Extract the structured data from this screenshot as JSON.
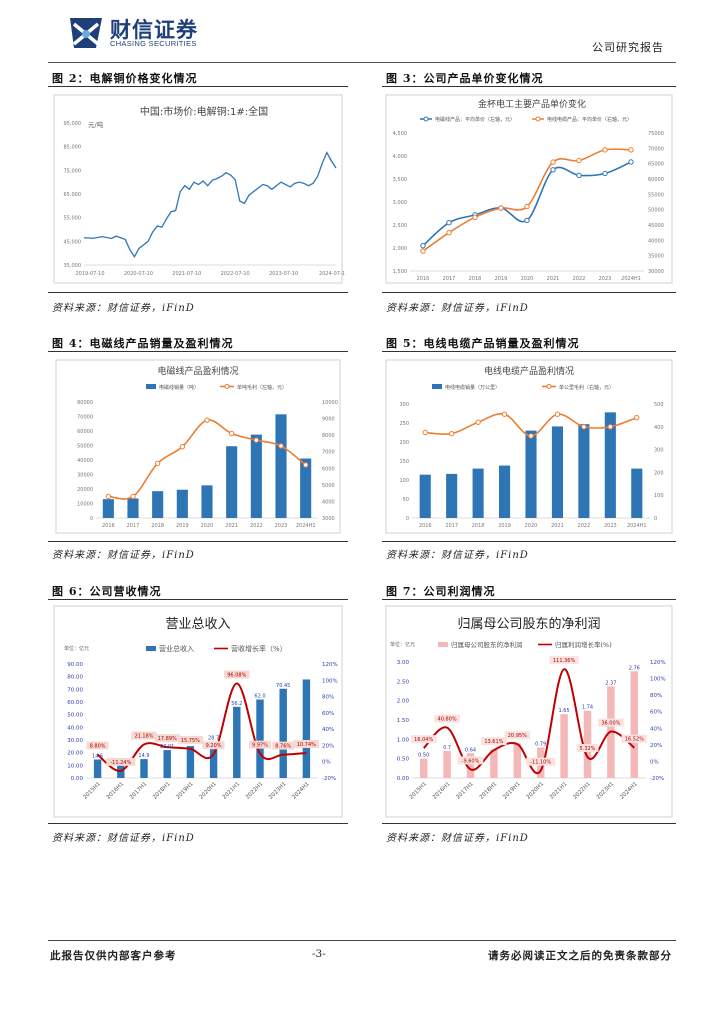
{
  "header": {
    "company_cn": "财信证券",
    "company_en": "CHASING SECURITIES",
    "doc_type": "公司研究报告"
  },
  "footer": {
    "left": "此报告仅供内部客户参考",
    "page": "-3-",
    "right": "请务必阅读正文之后的免责条款部分"
  },
  "colors": {
    "blue": "#2e75b6",
    "orange": "#ed7d31",
    "red": "#c00000",
    "pink": "#f4b8b8"
  },
  "figures": [
    {
      "label": "图 2：电解铜价格变化情况",
      "source": "资料来源：财信证券，iFinD"
    },
    {
      "label": "图 3：公司产品单价变化情况",
      "source": "资料来源：财信证券，iFinD"
    },
    {
      "label": "图 4：电磁线产品销量及盈利情况",
      "source": "资料来源：财信证券，iFinD"
    },
    {
      "label": "图 5：电线电缆产品销量及盈利情况",
      "source": "资料来源：财信证券，iFinD"
    },
    {
      "label": "图 6：公司营收情况",
      "source": "资料来源：财信证券，iFinD"
    },
    {
      "label": "图 7：公司利润情况",
      "source": "资料来源：财信证券，iFinD"
    }
  ],
  "chart_data": [
    {
      "type": "line",
      "title": "中国:市场价:电解铜:1#:全国",
      "unit": "元/吨",
      "x_ticks": [
        "2019-07-10",
        "2020-07-10",
        "2021-07-10",
        "2022-07-10",
        "2023-07-10",
        "2024-07-1"
      ],
      "y_ticks": [
        "35,000",
        "45,000",
        "55,000",
        "65,000",
        "75,000",
        "85,000",
        "95,000"
      ],
      "ylim": [
        35000,
        95000
      ],
      "series": [
        {
          "name": "电解铜",
          "points": [
            [
              0,
              46500
            ],
            [
              2,
              46300
            ],
            [
              4,
              47000
            ],
            [
              6,
              46200
            ],
            [
              7,
              47200
            ],
            [
              9,
              45800
            ],
            [
              10,
              41500
            ],
            [
              11,
              38500
            ],
            [
              12,
              42000
            ],
            [
              14,
              45000
            ],
            [
              15,
              49000
            ],
            [
              16,
              51500
            ],
            [
              17,
              51000
            ],
            [
              18,
              54500
            ],
            [
              19,
              57500
            ],
            [
              20,
              58000
            ],
            [
              21,
              66000
            ],
            [
              22,
              68500
            ],
            [
              23,
              67000
            ],
            [
              24,
              70000
            ],
            [
              25,
              69000
            ],
            [
              26,
              70500
            ],
            [
              27,
              68500
            ],
            [
              28,
              70800
            ],
            [
              29,
              71500
            ],
            [
              30,
              72500
            ],
            [
              31,
              74000
            ],
            [
              32,
              73000
            ],
            [
              33,
              71000
            ],
            [
              34,
              62000
            ],
            [
              35,
              61000
            ],
            [
              36,
              64500
            ],
            [
              37,
              66000
            ],
            [
              38,
              67500
            ],
            [
              39,
              69000
            ],
            [
              40,
              68500
            ],
            [
              41,
              67000
            ],
            [
              42,
              68500
            ],
            [
              43,
              70000
            ],
            [
              44,
              69000
            ],
            [
              45,
              68000
            ],
            [
              46,
              69500
            ],
            [
              47,
              70000
            ],
            [
              48,
              69500
            ],
            [
              49,
              68500
            ],
            [
              50,
              69500
            ],
            [
              51,
              72500
            ],
            [
              52,
              78000
            ],
            [
              53,
              82500
            ],
            [
              54,
              79000
            ],
            [
              55,
              76000
            ]
          ]
        }
      ]
    },
    {
      "type": "line",
      "title": "金杯电工主要产品单价变化",
      "legend": [
        "电磁线产品：平均单价（左轴，元）",
        "电线电缆产品：平均单价（右轴，元）"
      ],
      "categories": [
        "2016",
        "2017",
        "2018",
        "2019",
        "2020",
        "2021",
        "2022",
        "2023",
        "2024H1"
      ],
      "y_left_ticks": [
        "1,500",
        "2,000",
        "2,500",
        "3,000",
        "3,500",
        "4,000",
        "4,500"
      ],
      "y_right_ticks": [
        "30000",
        "35000",
        "40000",
        "45000",
        "50000",
        "55000",
        "60000",
        "65000",
        "70000",
        "75000"
      ],
      "ylim_left": [
        1500,
        4500
      ],
      "ylim_right": [
        30000,
        75000
      ],
      "series": [
        {
          "name": "电磁线产品：平均单价（左轴，元）",
          "axis": "left",
          "values": [
            2050,
            2550,
            2720,
            2870,
            2600,
            3700,
            3580,
            3620,
            3870
          ]
        },
        {
          "name": "电线电缆产品：平均单价（右轴，元）",
          "axis": "right",
          "values": [
            36500,
            42500,
            47500,
            50500,
            51000,
            65500,
            66000,
            69500,
            69500
          ]
        }
      ]
    },
    {
      "type": "bar",
      "title": "电磁线产品盈利情况",
      "legend": [
        "电磁线销量（吨）",
        "单吨毛利（左轴，元）"
      ],
      "categories": [
        "2016",
        "2017",
        "2018",
        "2019",
        "2020",
        "2021",
        "2022",
        "2023",
        "2024H1"
      ],
      "y_left_ticks": [
        "0",
        "10000",
        "20000",
        "30000",
        "40000",
        "50000",
        "60000",
        "70000",
        "80000"
      ],
      "y_right_ticks": [
        "3000",
        "4000",
        "5000",
        "6000",
        "7000",
        "8000",
        "9000",
        "10000"
      ],
      "ylim_left": [
        0,
        80000
      ],
      "ylim_right": [
        3000,
        10000
      ],
      "series": [
        {
          "name": "电磁线销量（吨）",
          "type": "bar",
          "axis": "left",
          "values": [
            13000,
            13500,
            18500,
            19500,
            22500,
            49500,
            57500,
            71500,
            41000
          ]
        },
        {
          "name": "单吨毛利（左轴，元）",
          "type": "line",
          "axis": "right",
          "values": [
            4300,
            4300,
            6300,
            7300,
            8900,
            8100,
            7700,
            7350,
            6200
          ]
        }
      ]
    },
    {
      "type": "bar",
      "title": "电线电缆产品盈利情况",
      "legend": [
        "电线电缆销量（万公里）",
        "单公里毛利（右轴，元）"
      ],
      "categories": [
        "2016",
        "2017",
        "2018",
        "2019",
        "2020",
        "2021",
        "2022",
        "2023",
        "2024H1"
      ],
      "y_left_ticks": [
        "0",
        "50",
        "100",
        "150",
        "200",
        "250",
        "300"
      ],
      "y_right_ticks": [
        "0",
        "100",
        "200",
        "300",
        "400",
        "500"
      ],
      "ylim_left": [
        0,
        300
      ],
      "ylim_right": [
        0,
        500
      ],
      "series": [
        {
          "name": "电线电缆销量（万公里）",
          "type": "bar",
          "axis": "left",
          "values": [
            114,
            116,
            130,
            138,
            230,
            241,
            247,
            278,
            130
          ]
        },
        {
          "name": "单公里毛利（右轴，元）",
          "type": "line",
          "axis": "right",
          "values": [
            375,
            370,
            420,
            455,
            360,
            455,
            400,
            400,
            440
          ]
        }
      ]
    },
    {
      "type": "bar",
      "title": "营业总收入",
      "unit": "单位：亿元",
      "legend": [
        "营业总收入",
        "营收增长率（%）"
      ],
      "categories": [
        "2015H1",
        "2016H1",
        "2017H1",
        "2018H1",
        "2019H1",
        "2020H1",
        "2021H1",
        "2022H1",
        "2023H1",
        "2024H1"
      ],
      "y_left_ticks": [
        "0.00",
        "10.00",
        "20.00",
        "30.00",
        "40.00",
        "50.00",
        "60.00",
        "70.00",
        "80.00",
        "90.00"
      ],
      "y_right_ticks": [
        "-20%",
        "0%",
        "20%",
        "40%",
        "60%",
        "80%",
        "100%",
        "120%"
      ],
      "ylim_left": [
        0,
        90
      ],
      "ylim_right": [
        -20,
        120
      ],
      "series": [
        {
          "name": "营业总收入",
          "type": "bar",
          "axis": "left",
          "values": [
            14.6,
            10.1,
            14.9,
            22.01,
            25.2,
            28.73,
            56.2,
            62.0,
            70.45,
            77.8
          ]
        },
        {
          "name": "营收增长率（%）",
          "type": "line",
          "axis": "right",
          "values": [
            8.8,
            -11.24,
            21.18,
            17.89,
            15.75,
            9.2,
            96.08,
            9.97,
            8.76,
            10.74
          ]
        }
      ],
      "bar_labels": [
        "14.6",
        "",
        "14.9",
        "22.01",
        "",
        "28.7",
        "56.2",
        "62.0",
        "70.45",
        ""
      ],
      "line_labels": [
        "8.80%",
        "-11.24%",
        "21.18%",
        "17.89%",
        "15.75%",
        "9.20%",
        "96.08%",
        "9.97%",
        "8.76%",
        "10.74%"
      ],
      "top_labels": [
        "",
        "",
        "",
        "",
        "",
        "",
        "",
        "",
        "70.45",
        ""
      ]
    },
    {
      "type": "bar",
      "title": "归属母公司股东的净利润",
      "unit": "单位：亿元",
      "legend": [
        "归属母公司股东的净利润",
        "归属利润增长率(%)"
      ],
      "categories": [
        "2015H1",
        "2016H1",
        "2017H1",
        "2018H1",
        "2019H1",
        "2020H1",
        "2021H1",
        "2022H1",
        "2023H1",
        "2024H1"
      ],
      "y_left_ticks": [
        "0.00",
        "0.50",
        "1.00",
        "1.50",
        "2.00",
        "2.50",
        "3.00"
      ],
      "y_right_ticks": [
        "-20%",
        "0%",
        "20%",
        "40%",
        "60%",
        "80%",
        "100%",
        "120%"
      ],
      "ylim_left": [
        0,
        3
      ],
      "ylim_right": [
        -20,
        120
      ],
      "series": [
        {
          "name": "归属母公司股东的净利润",
          "type": "bar",
          "axis": "left",
          "values": [
            0.5,
            0.7,
            0.64,
            0.73,
            0.89,
            0.79,
            1.65,
            1.74,
            2.37,
            2.76
          ]
        },
        {
          "name": "归属利润增长率(%)",
          "type": "line",
          "axis": "right",
          "values": [
            16.04,
            40.8,
            -9.6,
            13.61,
            20.95,
            -11.1,
            111.36,
            5.32,
            36.0,
            16.52
          ]
        }
      ],
      "bar_labels": [
        "0.50",
        "0.7",
        "0.64",
        "",
        "",
        "0.79",
        "1.65",
        "1.74",
        "2.37",
        "2.76"
      ],
      "line_labels": [
        "16.04%",
        "40.80%",
        "-9.60%",
        "13.61%",
        "20.95%",
        "-11.10%",
        "111.36%",
        "5.32%",
        "36.00%",
        "16.52%"
      ]
    }
  ]
}
